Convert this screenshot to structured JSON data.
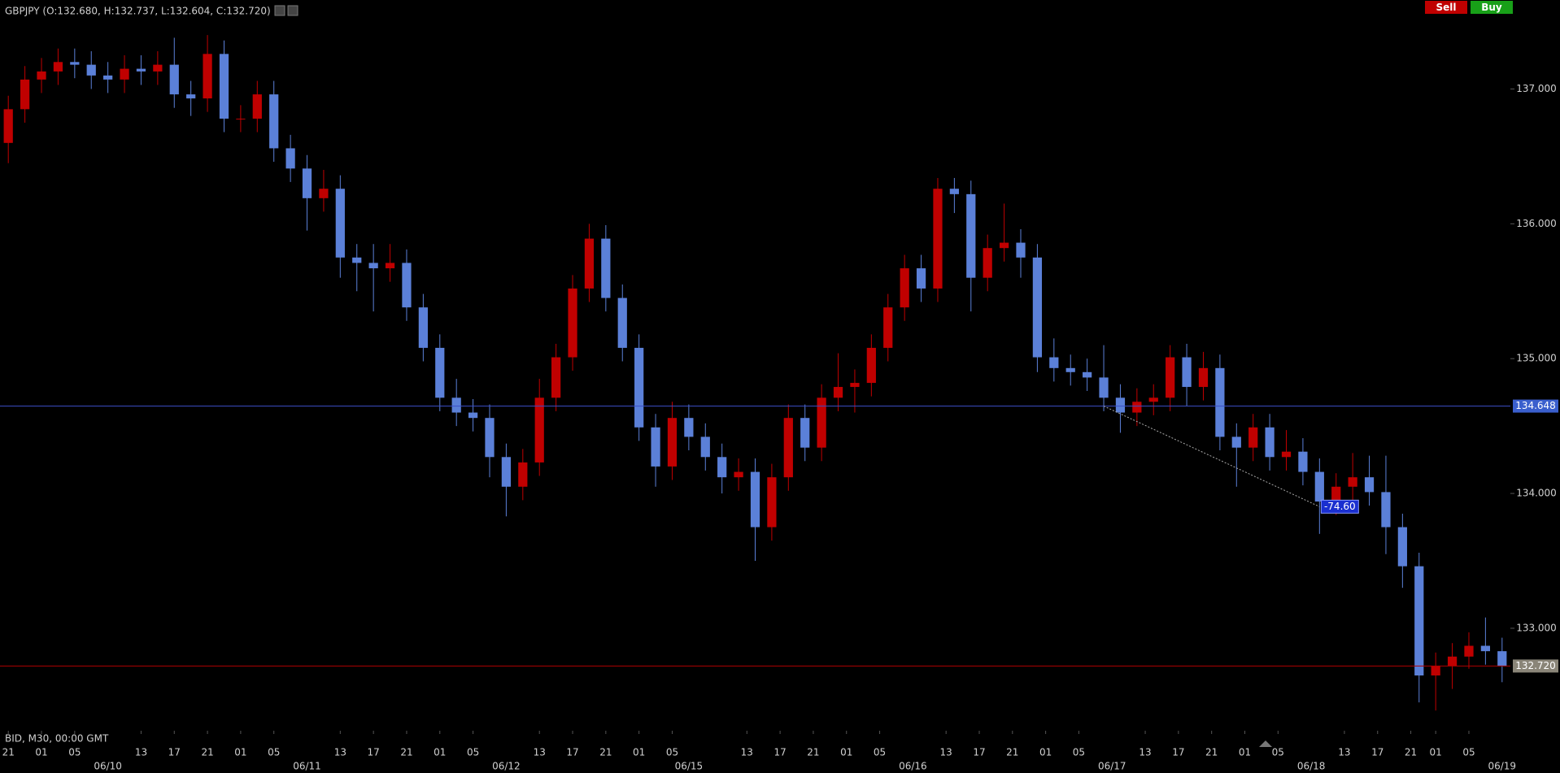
{
  "chart_data": {
    "type": "candlestick",
    "title": "GBPJPY (O:132.680, H:132.737, L:132.604, C:132.720)",
    "footnote": "BID, M30, 00:00 GMT",
    "up_color": "#c00000",
    "down_color": "#5b80d8",
    "x": [
      0,
      2,
      4,
      6,
      8,
      10,
      12,
      14,
      16,
      18,
      20,
      22,
      24,
      26,
      28,
      30,
      32,
      34,
      36,
      38,
      40,
      42,
      44,
      46,
      48,
      50,
      52,
      54,
      56,
      58,
      60,
      62,
      64,
      66,
      68,
      70,
      72,
      74,
      76,
      78,
      80,
      82,
      84,
      86,
      88,
      90,
      92,
      94,
      96,
      98,
      100,
      102,
      104,
      106,
      108,
      110,
      112,
      114,
      116,
      118,
      120,
      122,
      124,
      126,
      128,
      130,
      132,
      134,
      136,
      138,
      140,
      142,
      144,
      146,
      148,
      150,
      152,
      154,
      156,
      158,
      160,
      162,
      164,
      166,
      168,
      170,
      172,
      174,
      176,
      178,
      180
    ],
    "open": [
      136.6,
      136.85,
      137.07,
      137.13,
      137.2,
      137.18,
      137.1,
      137.07,
      137.15,
      137.13,
      137.18,
      136.96,
      136.93,
      137.26,
      136.78,
      136.78,
      136.96,
      136.56,
      136.41,
      136.19,
      136.26,
      135.75,
      135.71,
      135.67,
      135.71,
      135.38,
      135.08,
      134.71,
      134.6,
      134.56,
      134.27,
      134.05,
      134.23,
      134.71,
      135.01,
      135.52,
      135.89,
      135.45,
      135.08,
      134.49,
      134.2,
      134.56,
      134.42,
      134.27,
      134.12,
      134.16,
      133.75,
      134.12,
      134.56,
      134.34,
      134.71,
      134.79,
      134.82,
      135.08,
      135.38,
      135.67,
      135.52,
      136.26,
      136.22,
      135.6,
      135.82,
      135.86,
      135.75,
      135.01,
      134.93,
      134.9,
      134.86,
      134.71,
      134.6,
      134.68,
      134.71,
      135.01,
      134.79,
      134.93,
      134.42,
      134.34,
      134.49,
      134.27,
      134.31,
      134.16,
      133.94,
      134.05,
      134.12,
      134.01,
      133.75,
      133.46,
      132.65,
      132.72,
      132.79,
      132.87,
      132.83
    ],
    "high": [
      136.95,
      137.17,
      137.23,
      137.3,
      137.3,
      137.28,
      137.2,
      137.25,
      137.25,
      137.28,
      137.38,
      137.06,
      137.4,
      137.36,
      136.88,
      137.06,
      137.06,
      136.66,
      136.51,
      136.4,
      136.36,
      135.85,
      135.85,
      135.85,
      135.81,
      135.48,
      135.18,
      134.85,
      134.7,
      134.66,
      134.37,
      134.33,
      134.85,
      135.11,
      135.62,
      136.0,
      135.99,
      135.55,
      135.18,
      134.59,
      134.68,
      134.66,
      134.52,
      134.37,
      134.26,
      134.26,
      134.22,
      134.66,
      134.66,
      134.81,
      135.04,
      134.92,
      135.18,
      135.48,
      135.77,
      135.77,
      136.34,
      136.34,
      136.32,
      135.92,
      136.15,
      135.96,
      135.85,
      135.15,
      135.03,
      135.0,
      135.1,
      134.81,
      134.78,
      134.81,
      135.1,
      135.11,
      135.05,
      135.03,
      134.52,
      134.59,
      134.59,
      134.47,
      134.41,
      134.26,
      134.15,
      134.3,
      134.28,
      134.28,
      133.85,
      133.56,
      132.82,
      132.89,
      132.97,
      133.08,
      132.93
    ],
    "low": [
      136.45,
      136.75,
      136.97,
      137.03,
      137.08,
      137.0,
      136.97,
      136.97,
      137.03,
      137.03,
      136.86,
      136.8,
      136.83,
      136.68,
      136.68,
      136.68,
      136.46,
      136.31,
      135.95,
      136.09,
      135.6,
      135.5,
      135.35,
      135.57,
      135.28,
      134.98,
      134.61,
      134.5,
      134.46,
      134.12,
      133.83,
      133.95,
      134.13,
      134.61,
      134.91,
      135.42,
      135.35,
      134.98,
      134.39,
      134.05,
      134.1,
      134.32,
      134.17,
      134.0,
      134.02,
      133.5,
      133.65,
      134.02,
      134.24,
      134.24,
      134.61,
      134.6,
      134.72,
      134.98,
      135.28,
      135.42,
      135.42,
      136.08,
      135.35,
      135.5,
      135.72,
      135.6,
      134.9,
      134.83,
      134.8,
      134.76,
      134.61,
      134.45,
      134.5,
      134.58,
      134.61,
      134.65,
      134.69,
      134.32,
      134.05,
      134.24,
      134.17,
      134.17,
      134.06,
      133.7,
      133.84,
      133.95,
      133.91,
      133.55,
      133.3,
      132.45,
      132.39,
      132.55,
      132.7,
      132.73,
      132.6
    ],
    "close": [
      136.85,
      137.07,
      137.13,
      137.2,
      137.18,
      137.1,
      137.07,
      137.15,
      137.13,
      137.18,
      136.96,
      136.93,
      137.26,
      136.78,
      136.78,
      136.96,
      136.56,
      136.41,
      136.19,
      136.26,
      135.75,
      135.71,
      135.67,
      135.71,
      135.38,
      135.08,
      134.71,
      134.6,
      134.56,
      134.27,
      134.05,
      134.23,
      134.71,
      135.01,
      135.52,
      135.89,
      135.45,
      135.08,
      134.49,
      134.2,
      134.56,
      134.42,
      134.27,
      134.12,
      134.16,
      133.75,
      134.12,
      134.56,
      134.34,
      134.71,
      134.79,
      134.82,
      135.08,
      135.38,
      135.67,
      135.52,
      136.26,
      136.22,
      135.6,
      135.82,
      135.86,
      135.75,
      135.01,
      134.93,
      134.9,
      134.86,
      134.71,
      134.6,
      134.68,
      134.71,
      135.01,
      134.79,
      134.93,
      134.42,
      134.34,
      134.49,
      134.27,
      134.31,
      134.16,
      133.94,
      134.05,
      134.12,
      134.01,
      133.75,
      133.46,
      132.65,
      132.72,
      132.79,
      132.87,
      132.83,
      132.72
    ],
    "xlim": [
      -1,
      181
    ],
    "ylim": [
      132.24,
      137.66
    ],
    "yticks": [
      {
        "value": 133,
        "label": "133.000"
      },
      {
        "value": 134,
        "label": "134.000"
      },
      {
        "value": 135,
        "label": "135.000"
      },
      {
        "value": 136,
        "label": "136.000"
      },
      {
        "value": 137,
        "label": "137.000"
      }
    ],
    "xticks": [
      {
        "value": 0,
        "label": "21"
      },
      {
        "value": 4,
        "label": "01"
      },
      {
        "value": 8,
        "label": "05"
      },
      {
        "value": 16,
        "label": "13"
      },
      {
        "value": 20,
        "label": "17"
      },
      {
        "value": 24,
        "label": "21"
      },
      {
        "value": 28,
        "label": "01"
      },
      {
        "value": 32,
        "label": "05"
      },
      {
        "value": 40,
        "label": "13"
      },
      {
        "value": 44,
        "label": "17"
      },
      {
        "value": 48,
        "label": "21"
      },
      {
        "value": 52,
        "label": "01"
      },
      {
        "value": 56,
        "label": "05"
      },
      {
        "value": 64,
        "label": "13"
      },
      {
        "value": 68,
        "label": "17"
      },
      {
        "value": 72,
        "label": "21"
      },
      {
        "value": 76,
        "label": "01"
      },
      {
        "value": 80,
        "label": "05"
      },
      {
        "value": 89,
        "label": "13"
      },
      {
        "value": 93,
        "label": "17"
      },
      {
        "value": 97,
        "label": "21"
      },
      {
        "value": 101,
        "label": "01"
      },
      {
        "value": 105,
        "label": "05"
      },
      {
        "value": 113,
        "label": "13"
      },
      {
        "value": 117,
        "label": "17"
      },
      {
        "value": 121,
        "label": "21"
      },
      {
        "value": 125,
        "label": "01"
      },
      {
        "value": 129,
        "label": "05"
      },
      {
        "value": 137,
        "label": "13"
      },
      {
        "value": 141,
        "label": "17"
      },
      {
        "value": 145,
        "label": "21"
      },
      {
        "value": 149,
        "label": "01"
      },
      {
        "value": 153,
        "label": "05"
      },
      {
        "value": 161,
        "label": "13"
      },
      {
        "value": 165,
        "label": "17"
      },
      {
        "value": 169,
        "label": "21"
      },
      {
        "value": 172,
        "label": "01"
      },
      {
        "value": 176,
        "label": "05"
      }
    ],
    "date_ticks": [
      {
        "value": 12,
        "label": "06/10"
      },
      {
        "value": 36,
        "label": "06/11"
      },
      {
        "value": 60,
        "label": "06/12"
      },
      {
        "value": 82,
        "label": "06/15"
      },
      {
        "value": 109,
        "label": "06/16"
      },
      {
        "value": 133,
        "label": "06/17"
      },
      {
        "value": 157,
        "label": "06/18"
      },
      {
        "value": 180,
        "label": "06/19"
      }
    ],
    "levels": [
      {
        "value": 134.648,
        "label": "134.648",
        "color": "#3b4fc8",
        "label_color": "#3a5fcd"
      },
      {
        "value": 132.72,
        "label": "132.720",
        "color": "#b00000",
        "label_color": "#8a8578"
      }
    ],
    "measure": {
      "label": "-74.60",
      "x": [
        132,
        158
      ],
      "y": [
        134.648,
        133.902
      ]
    }
  },
  "toolbar": {
    "sell": "Sell",
    "buy": "Buy"
  }
}
